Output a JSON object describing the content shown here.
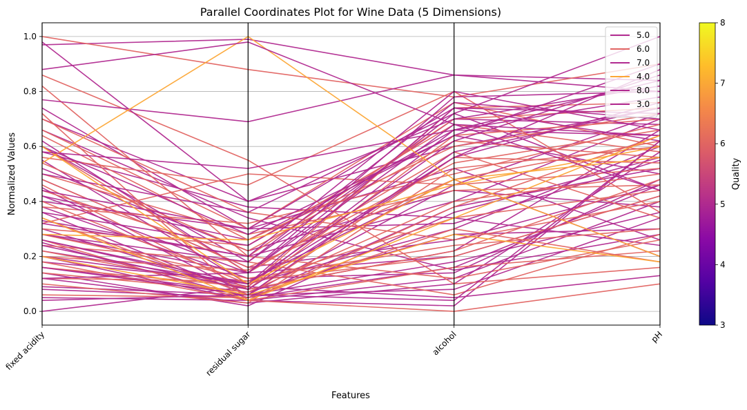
{
  "chart_data": {
    "type": "line",
    "subtype": "parallel-coordinates",
    "title": "Parallel Coordinates Plot for Wine Data (5 Dimensions)",
    "xlabel": "Features",
    "ylabel": "Normalized Values",
    "categories": [
      "fixed acidity",
      "residual sugar",
      "alcohol",
      "pH"
    ],
    "ylim": [
      -0.05,
      1.05
    ],
    "yticks": [
      0.0,
      0.2,
      0.4,
      0.6,
      0.8,
      1.0
    ],
    "ytick_labels": [
      "0.0",
      "0.2",
      "0.4",
      "0.6",
      "0.8",
      "1.0"
    ],
    "grid": "y-axis on",
    "legend_position": "top-right",
    "series": [
      {
        "name": "5.0",
        "color": "#b12a90",
        "lines": [
          [
            0.97,
            0.99,
            0.86,
            0.84
          ],
          [
            0.0,
            0.09,
            0.05,
            0.13
          ],
          [
            0.74,
            0.3,
            0.32,
            0.55
          ],
          [
            0.62,
            0.14,
            0.2,
            0.42
          ],
          [
            0.55,
            0.1,
            0.3,
            0.6
          ],
          [
            0.45,
            0.06,
            0.46,
            0.72
          ],
          [
            0.38,
            0.12,
            0.14,
            0.48
          ],
          [
            0.3,
            0.08,
            0.22,
            0.66
          ],
          [
            0.25,
            0.05,
            0.38,
            0.52
          ],
          [
            0.2,
            0.04,
            0.12,
            0.4
          ],
          [
            0.16,
            0.07,
            0.28,
            0.3
          ],
          [
            0.12,
            0.03,
            0.1,
            0.58
          ],
          [
            0.09,
            0.06,
            0.18,
            0.36
          ],
          [
            0.05,
            0.04,
            0.02,
            0.62
          ],
          [
            0.33,
            0.2,
            0.4,
            0.7
          ],
          [
            0.48,
            0.16,
            0.26,
            0.46
          ],
          [
            0.66,
            0.34,
            0.15,
            0.28
          ],
          [
            0.22,
            0.1,
            0.56,
            0.76
          ],
          [
            0.42,
            0.26,
            0.64,
            0.5
          ],
          [
            0.58,
            0.38,
            0.34,
            0.24
          ],
          [
            0.28,
            0.14,
            0.72,
            0.44
          ],
          [
            0.18,
            0.11,
            0.48,
            0.2
          ],
          [
            0.36,
            0.06,
            0.08,
            0.34
          ],
          [
            0.7,
            0.4,
            0.6,
            0.74
          ],
          [
            0.14,
            0.02,
            0.36,
            0.56
          ],
          [
            0.52,
            0.22,
            0.44,
            0.38
          ],
          [
            0.26,
            0.09,
            0.66,
            0.64
          ],
          [
            0.4,
            0.3,
            0.52,
            0.26
          ],
          [
            0.08,
            0.05,
            0.16,
            0.46
          ],
          [
            0.6,
            0.18,
            0.7,
            0.68
          ]
        ]
      },
      {
        "name": "6.0",
        "color": "#e16462",
        "lines": [
          [
            1.0,
            0.88,
            0.78,
            0.9
          ],
          [
            0.86,
            0.55,
            0.1,
            0.16
          ],
          [
            0.82,
            0.2,
            0.7,
            0.74
          ],
          [
            0.72,
            0.04,
            0.0,
            0.1
          ],
          [
            0.64,
            0.26,
            0.6,
            0.72
          ],
          [
            0.56,
            0.46,
            0.8,
            0.36
          ],
          [
            0.48,
            0.16,
            0.48,
            0.62
          ],
          [
            0.4,
            0.1,
            0.34,
            0.44
          ],
          [
            0.34,
            0.06,
            0.56,
            0.54
          ],
          [
            0.28,
            0.12,
            0.24,
            0.3
          ],
          [
            0.22,
            0.08,
            0.64,
            0.7
          ],
          [
            0.18,
            0.04,
            0.16,
            0.22
          ],
          [
            0.14,
            0.07,
            0.4,
            0.5
          ],
          [
            0.1,
            0.03,
            0.52,
            0.6
          ],
          [
            0.06,
            0.05,
            0.3,
            0.18
          ],
          [
            0.44,
            0.2,
            0.12,
            0.26
          ],
          [
            0.5,
            0.28,
            0.44,
            0.46
          ],
          [
            0.6,
            0.14,
            0.58,
            0.34
          ],
          [
            0.3,
            0.24,
            0.68,
            0.58
          ],
          [
            0.24,
            0.18,
            0.06,
            0.28
          ],
          [
            0.38,
            0.32,
            0.5,
            0.68
          ],
          [
            0.7,
            0.36,
            0.26,
            0.4
          ],
          [
            0.16,
            0.09,
            0.74,
            0.76
          ],
          [
            0.26,
            0.04,
            0.38,
            0.64
          ],
          [
            0.12,
            0.11,
            0.2,
            0.42
          ],
          [
            0.54,
            0.22,
            0.62,
            0.56
          ],
          [
            0.46,
            0.08,
            0.22,
            0.48
          ],
          [
            0.32,
            0.5,
            0.46,
            0.52
          ],
          [
            0.2,
            0.15,
            0.54,
            0.66
          ],
          [
            0.66,
            0.3,
            0.76,
            0.6
          ]
        ]
      },
      {
        "name": "7.0",
        "color": "#b12a90",
        "lines": [
          [
            0.98,
            0.4,
            0.7,
            0.82
          ],
          [
            0.77,
            0.69,
            0.86,
            0.8
          ],
          [
            0.5,
            0.36,
            0.72,
            1.0
          ],
          [
            0.36,
            0.24,
            0.66,
            0.78
          ],
          [
            0.28,
            0.18,
            0.76,
            0.7
          ],
          [
            0.2,
            0.1,
            0.62,
            0.86
          ],
          [
            0.16,
            0.06,
            0.58,
            0.74
          ],
          [
            0.12,
            0.14,
            0.68,
            0.64
          ],
          [
            0.44,
            0.3,
            0.74,
            0.62
          ],
          [
            0.6,
            0.28,
            0.64,
            0.9
          ],
          [
            0.32,
            0.2,
            0.8,
            0.66
          ],
          [
            0.24,
            0.08,
            0.56,
            0.88
          ]
        ]
      },
      {
        "name": "4.0",
        "color": "#fca636",
        "lines": [
          [
            0.54,
            1.0,
            0.48,
            0.2
          ],
          [
            0.34,
            0.04,
            0.34,
            0.64
          ],
          [
            0.6,
            0.1,
            0.48,
            0.56
          ],
          [
            0.2,
            0.06,
            0.28,
            0.18
          ],
          [
            0.28,
            0.26,
            0.46,
            0.6
          ]
        ]
      },
      {
        "name": "8.0",
        "color": "#b12a90",
        "lines": [
          [
            0.58,
            0.52,
            0.66,
            0.84
          ],
          [
            0.42,
            0.14,
            0.78,
            0.8
          ],
          [
            0.26,
            0.1,
            0.74,
            0.72
          ]
        ]
      },
      {
        "name": "3.0",
        "color": "#b12a90",
        "lines": [
          [
            0.88,
            0.98,
            0.68,
            0.44
          ],
          [
            0.04,
            0.06,
            0.04,
            0.62
          ]
        ]
      }
    ],
    "colorbar": {
      "label": "Quality",
      "min": 3,
      "max": 8,
      "ticks": [
        "3",
        "4",
        "5",
        "6",
        "7",
        "8"
      ],
      "colors": [
        "#0d0887",
        "#5302a3",
        "#8b0aa5",
        "#b83289",
        "#db5c68",
        "#f48849",
        "#febd2a",
        "#f0f921"
      ]
    }
  }
}
